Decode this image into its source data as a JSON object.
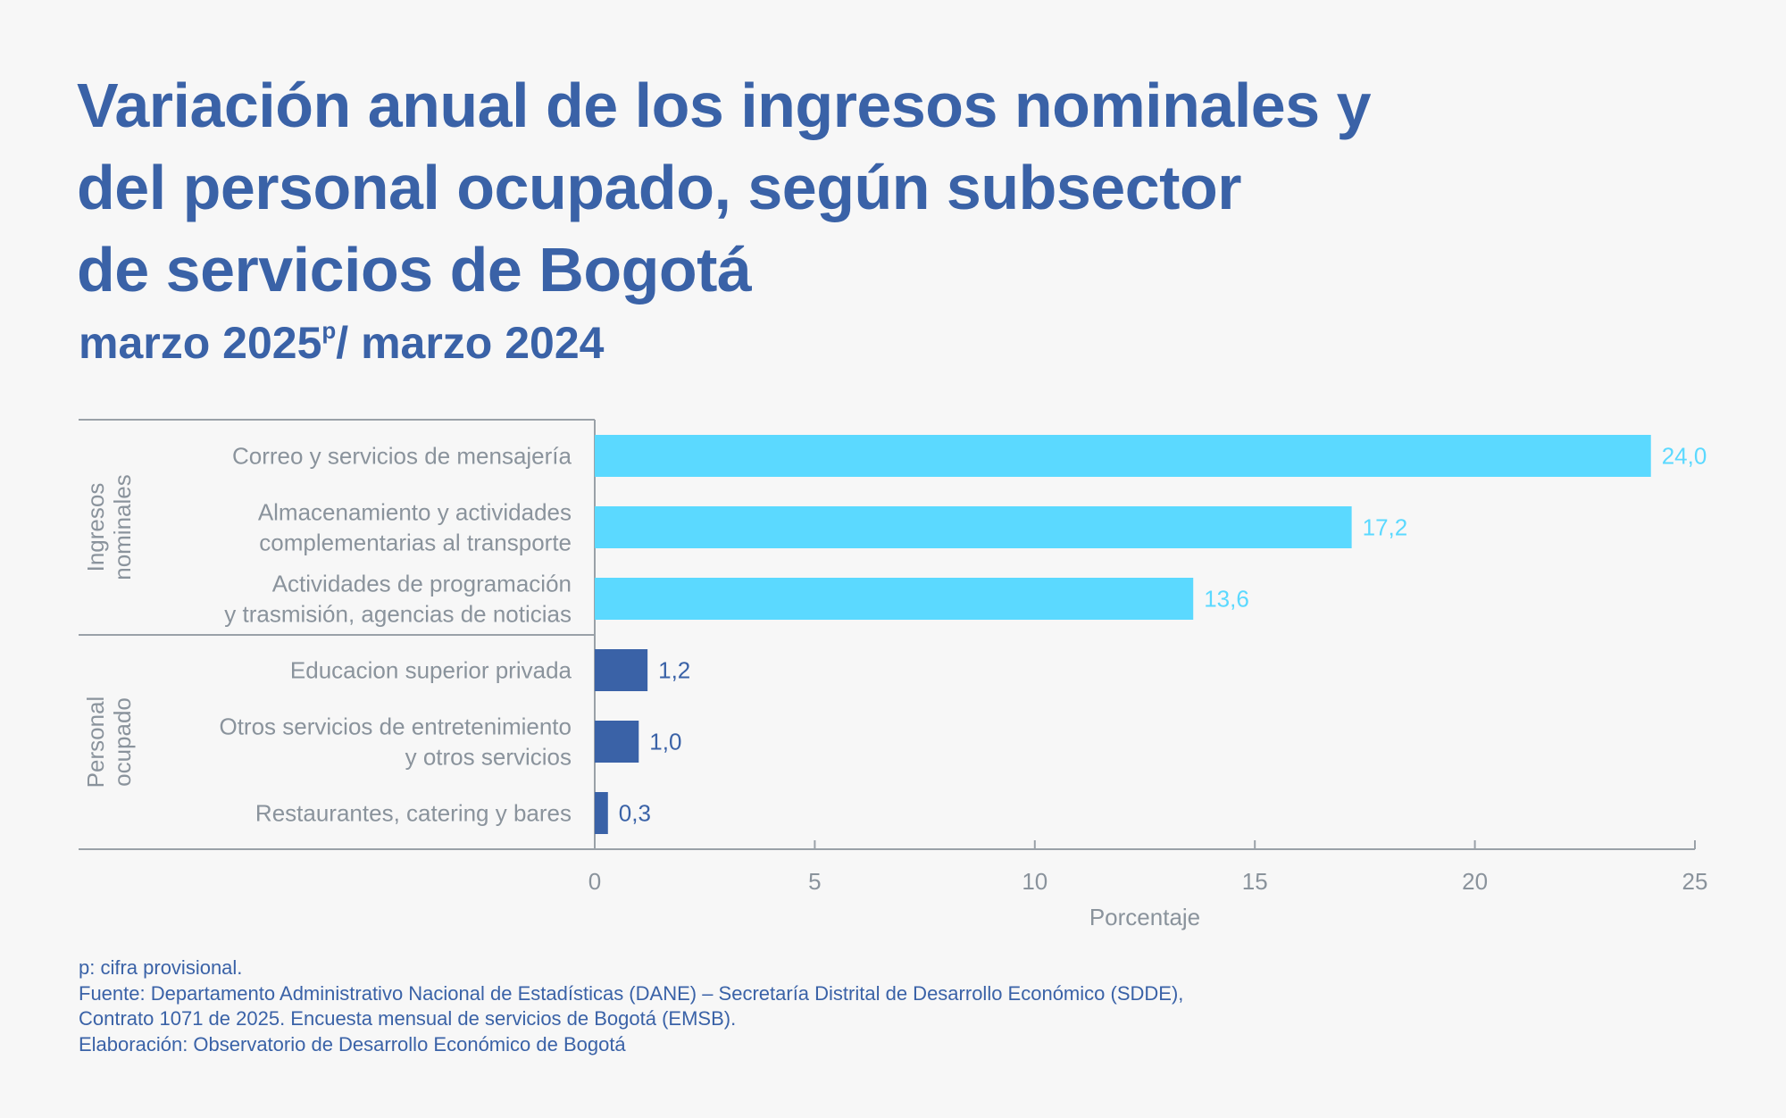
{
  "header": {
    "title_lines": [
      "Variación anual de los ingresos nominales y",
      "del personal ocupado, según subsector",
      "de servicios de Bogotá"
    ],
    "subtitle_pre": "marzo 2025",
    "subtitle_sup": "p",
    "subtitle_post": "/ marzo 2024"
  },
  "colors": {
    "ingresos": "#5bd9ff",
    "personal": "#3a62a7",
    "text_gray": "#8a939c",
    "axis": "#9aa1a8"
  },
  "chart_data": {
    "type": "bar",
    "orientation": "horizontal",
    "title": "Variación anual de los ingresos nominales y del personal ocupado, según subsector de servicios de Bogotá",
    "subtitle": "marzo 2025p/ marzo 2024",
    "xlabel": "Porcentaje",
    "ylabel": "",
    "xlim": [
      0,
      25
    ],
    "xticks": [
      0,
      5,
      10,
      15,
      20,
      25
    ],
    "xtick_labels": [
      "0",
      "5",
      "10",
      "15",
      "20",
      "25"
    ],
    "grid": false,
    "groups": [
      {
        "name": "Ingresos nominales",
        "name_lines": [
          "Ingresos",
          "nominales"
        ],
        "color_key": "ingresos",
        "items": [
          {
            "label_lines": [
              "Correo y servicios de mensajería"
            ],
            "value": 24.0,
            "value_label": "24,0"
          },
          {
            "label_lines": [
              "Almacenamiento y actividades",
              "complementarias al transporte"
            ],
            "value": 17.2,
            "value_label": "17,2"
          },
          {
            "label_lines": [
              "Actividades de programación",
              "y trasmisión, agencias de noticias"
            ],
            "value": 13.6,
            "value_label": "13,6"
          }
        ]
      },
      {
        "name": "Personal ocupado",
        "name_lines": [
          "Personal",
          "ocupado"
        ],
        "color_key": "personal",
        "items": [
          {
            "label_lines": [
              "Educacion superior privada"
            ],
            "value": 1.2,
            "value_label": "1,2"
          },
          {
            "label_lines": [
              "Otros servicios de entretenimiento",
              "y otros servicios"
            ],
            "value": 1.0,
            "value_label": "1,0"
          },
          {
            "label_lines": [
              "Restaurantes, catering y bares"
            ],
            "value": 0.3,
            "value_label": "0,3"
          }
        ]
      }
    ]
  },
  "footer": {
    "lines": [
      "p: cifra provisional.",
      "Fuente: Departamento Administrativo Nacional de Estadísticas (DANE) – Secretaría Distrital de Desarrollo Económico (SDDE),",
      "Contrato 1071 de 2025. Encuesta mensual de servicios de Bogotá (EMSB).",
      "Elaboración: Observatorio de Desarrollo Económico de Bogotá"
    ]
  }
}
